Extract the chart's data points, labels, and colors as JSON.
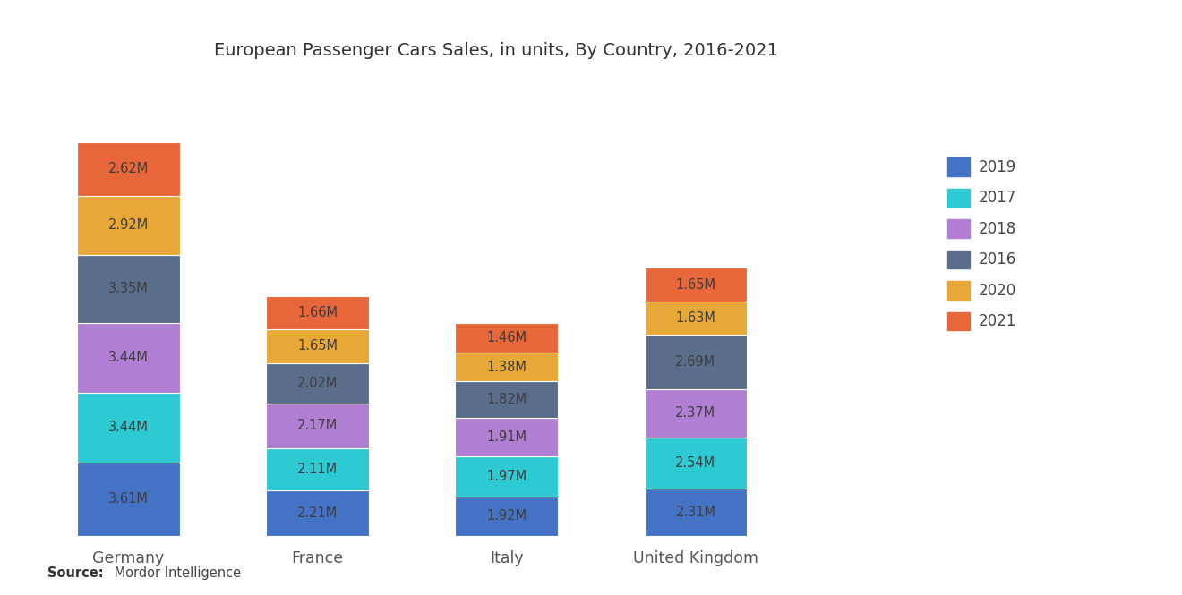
{
  "title": "European Passenger Cars Sales, in units, By Country, 2016-2021",
  "countries": [
    "Germany",
    "France",
    "Italy",
    "United Kingdom"
  ],
  "years": [
    "2019",
    "2017",
    "2018",
    "2016",
    "2020",
    "2021"
  ],
  "colors": {
    "2019": "#4472C4",
    "2017": "#2ECAD4",
    "2018": "#B07FD4",
    "2016": "#5A6E8C",
    "2020": "#E8A838",
    "2021": "#E8673A"
  },
  "data": {
    "Germany": {
      "2019": 3.61,
      "2017": 3.44,
      "2018": 3.44,
      "2016": 3.35,
      "2020": 2.92,
      "2021": 2.62
    },
    "France": {
      "2019": 2.21,
      "2017": 2.11,
      "2018": 2.17,
      "2016": 2.02,
      "2020": 1.65,
      "2021": 1.66
    },
    "Italy": {
      "2019": 1.92,
      "2017": 1.97,
      "2018": 1.91,
      "2016": 1.82,
      "2020": 1.38,
      "2021": 1.46
    },
    "United Kingdom": {
      "2019": 2.31,
      "2017": 2.54,
      "2018": 2.37,
      "2016": 2.69,
      "2020": 1.63,
      "2021": 1.65
    }
  },
  "background_color": "#FFFFFF",
  "bar_width": 0.38,
  "label_fontsize": 10.5,
  "title_fontsize": 14,
  "x_positions": [
    0.25,
    0.95,
    1.65,
    2.35
  ],
  "xlim": [
    -0.05,
    3.1
  ],
  "ylim": [
    0,
    22
  ],
  "legend_order": [
    "2019",
    "2017",
    "2018",
    "2016",
    "2020",
    "2021"
  ]
}
